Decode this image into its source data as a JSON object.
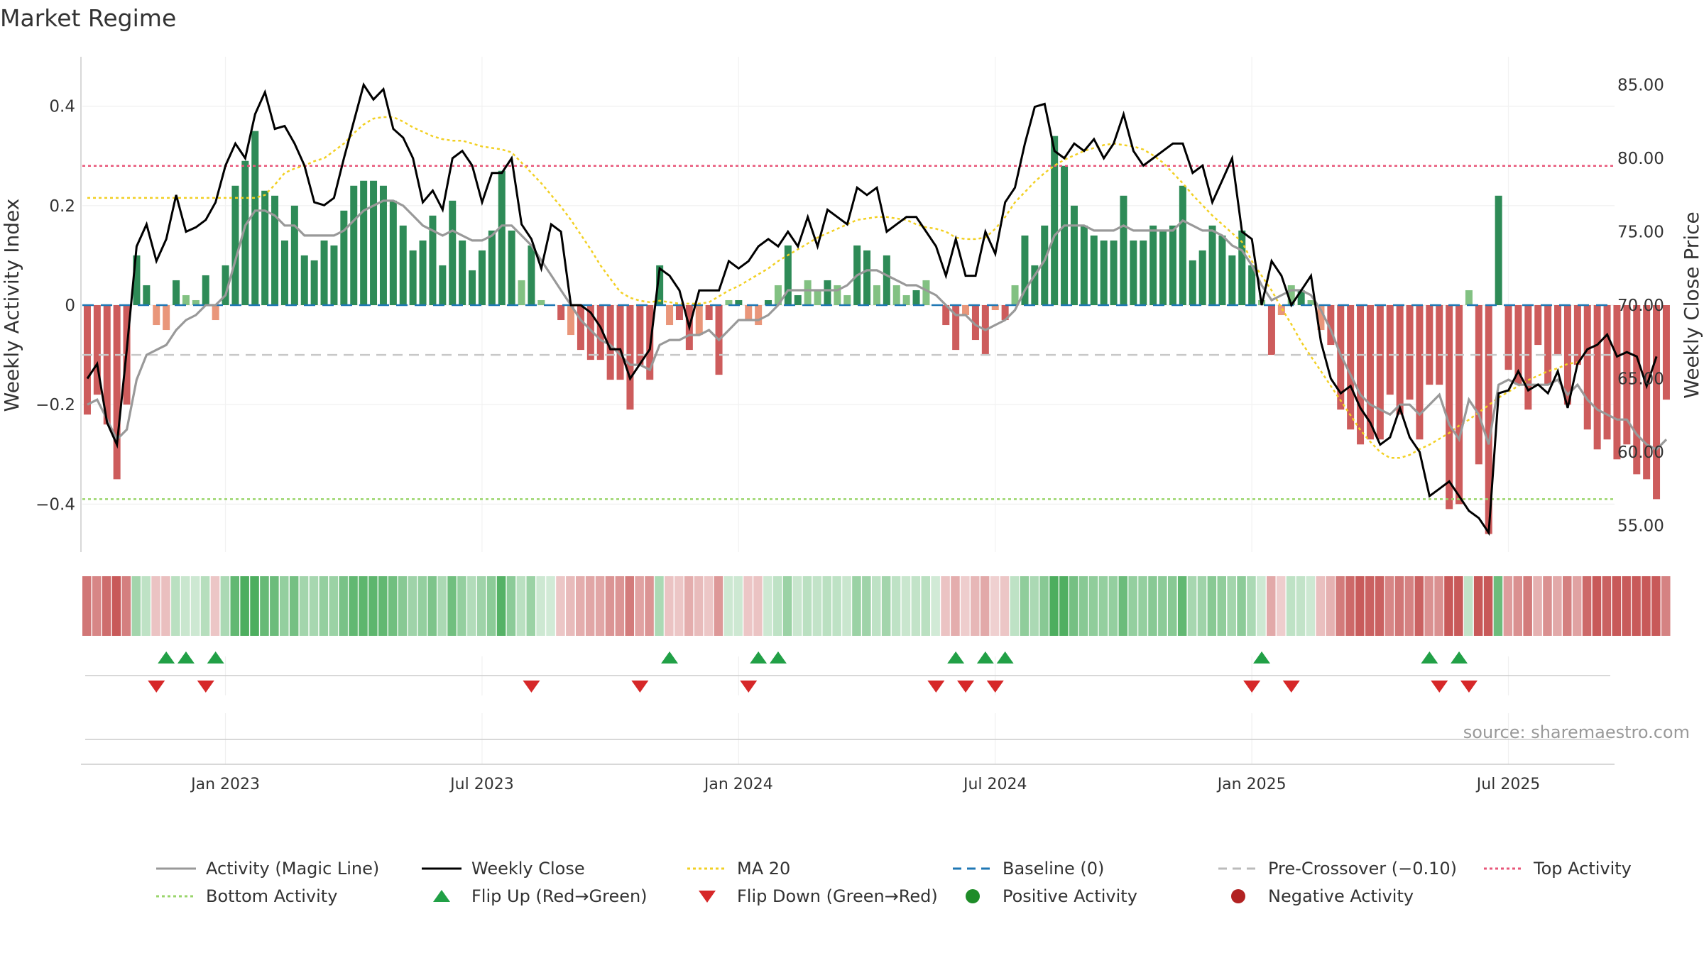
{
  "chart_data": {
    "type": "bar",
    "title": "Market Regime",
    "source": "source: sharemaestro.com",
    "ylabel": "Weekly Activity Index",
    "y2label": "Weekly Close Price",
    "ylim": [
      -0.5,
      0.5
    ],
    "y2lim": [
      52.0,
      86.0
    ],
    "yticks": [
      0.4,
      0.2,
      0,
      -0.2,
      -0.4
    ],
    "ytick_labels": [
      "0.4",
      "0.2",
      "0",
      "−0.2",
      "−0.4"
    ],
    "y2ticks": [
      85.0,
      80.0,
      75.0,
      70.0,
      65.0,
      60.0,
      55.0
    ],
    "y2tick_labels": [
      "85.00",
      "80.00",
      "75.00",
      "70.00",
      "65.00",
      "60.00",
      "55.00"
    ],
    "xticks": [
      "Jan 2023",
      "Jul 2023",
      "Jan 2024",
      "Jul 2024",
      "Jan 2025",
      "Jul 2025"
    ],
    "xtick_weeks": [
      14.5,
      40.5,
      66.5,
      92.5,
      118.5,
      144.5
    ],
    "grid": true,
    "legend_position": "bottom",
    "top_activity": 0.28,
    "bottom_activity": -0.39,
    "pre_crossover": -0.1,
    "baseline": 0,
    "legend": [
      {
        "label": "Activity (Magic Line)",
        "kind": "line",
        "color": "#999999",
        "dash": ""
      },
      {
        "label": "Weekly Close",
        "kind": "line",
        "color": "#000000",
        "dash": ""
      },
      {
        "label": "MA 20",
        "kind": "line",
        "color": "#f2d024",
        "dash": "4,4"
      },
      {
        "label": "Baseline (0)",
        "kind": "line",
        "color": "#1f77b4",
        "dash": "12,8"
      },
      {
        "label": "Pre-Crossover (−0.10)",
        "kind": "line",
        "color": "#bbbbbb",
        "dash": "12,8"
      },
      {
        "label": "Top Activity",
        "kind": "line",
        "color": "#e8577a",
        "dash": "4,4"
      },
      {
        "label": "Bottom Activity",
        "kind": "line",
        "color": "#9ad56b",
        "dash": "4,4"
      },
      {
        "label": "Flip Up (Red→Green)",
        "kind": "triup",
        "color": "#21a046",
        "dash": ""
      },
      {
        "label": "Flip Down (Green→Red)",
        "kind": "tridown",
        "color": "#d62728",
        "dash": ""
      },
      {
        "label": "Positive Activity",
        "kind": "dot",
        "color": "#1e8c28",
        "dash": ""
      },
      {
        "label": "Negative Activity",
        "kind": "dot",
        "color": "#b22222",
        "dash": ""
      }
    ],
    "colors": {
      "pos_dark": "#2e8b57",
      "pos_light": "#82c182",
      "neg_dark": "#cd5c5c",
      "neg_light": "#e9967a",
      "flip_up": "#21a046",
      "flip_down": "#d62728",
      "close": "#000000",
      "magic": "#999999",
      "ma20": "#f2d024"
    },
    "series": [
      {
        "name": "Activity",
        "values": [
          -0.22,
          -0.18,
          -0.24,
          -0.35,
          -0.2,
          0.1,
          0.04,
          -0.04,
          -0.05,
          0.05,
          0.02,
          0.01,
          0.06,
          -0.03,
          0.08,
          0.24,
          0.29,
          0.35,
          0.23,
          0.22,
          0.13,
          0.2,
          0.1,
          0.09,
          0.13,
          0.12,
          0.19,
          0.24,
          0.25,
          0.25,
          0.24,
          0.21,
          0.16,
          0.11,
          0.13,
          0.18,
          0.08,
          0.21,
          0.13,
          0.07,
          0.11,
          0.15,
          0.27,
          0.15,
          0.05,
          0.12,
          0.01,
          0,
          -0.03,
          -0.06,
          -0.09,
          -0.11,
          -0.11,
          -0.15,
          -0.15,
          -0.21,
          -0.12,
          -0.15,
          0.08,
          -0.04,
          -0.03,
          -0.09,
          -0.06,
          -0.03,
          -0.14,
          0.01,
          0.01,
          -0.03,
          -0.04,
          0.01,
          0.04,
          0.12,
          0.02,
          0.05,
          0.03,
          0.05,
          0.04,
          0.02,
          0.12,
          0.11,
          0.04,
          0.1,
          0.04,
          0.02,
          0.03,
          0.05,
          0,
          -0.04,
          -0.09,
          -0.02,
          -0.07,
          -0.1,
          -0.01,
          -0.03,
          0.04,
          0.14,
          0.08,
          0.16,
          0.34,
          0.28,
          0.2,
          0.16,
          0.14,
          0.13,
          0.13,
          0.22,
          0.13,
          0.13,
          0.16,
          0.15,
          0.16,
          0.24,
          0.09,
          0.11,
          0.16,
          0.14,
          0.1,
          0.15,
          0.08,
          0.01,
          -0.1,
          -0.02,
          0.04,
          0.03,
          0.01,
          -0.05,
          -0.08,
          -0.21,
          -0.25,
          -0.28,
          -0.27,
          -0.27,
          -0.18,
          -0.22,
          -0.19,
          -0.27,
          -0.16,
          -0.16,
          -0.41,
          -0.4,
          0.03,
          -0.32,
          -0.46,
          0.22,
          -0.13,
          -0.16,
          -0.21,
          -0.08,
          -0.16,
          -0.1,
          -0.2,
          -0.12,
          -0.25,
          -0.29,
          -0.27,
          -0.31,
          -0.28,
          -0.34,
          -0.35,
          -0.39,
          -0.19
        ]
      },
      {
        "name": "Weekly Close",
        "values": [
          65.0,
          66.0,
          62.0,
          60.5,
          67.0,
          74.0,
          75.5,
          73.0,
          74.5,
          77.5,
          75.0,
          75.3,
          75.8,
          77.0,
          79.5,
          81.0,
          80.0,
          83.0,
          84.5,
          82.0,
          82.2,
          81.0,
          79.5,
          77.0,
          76.8,
          77.3,
          80.0,
          82.5,
          85.0,
          84.0,
          84.7,
          82.0,
          81.4,
          80.0,
          77.0,
          77.8,
          76.5,
          80.0,
          80.5,
          79.5,
          77.0,
          79.0,
          79.0,
          80.0,
          75.5,
          74.5,
          72.5,
          75.5,
          75.0,
          70.0,
          70.0,
          69.5,
          68.5,
          67.0,
          67.0,
          65.0,
          66.0,
          67.0,
          72.5,
          72.0,
          71.0,
          68.5,
          71.0,
          71.0,
          71.0,
          73.0,
          72.5,
          73.0,
          74.0,
          74.5,
          74.0,
          75.0,
          74.0,
          76.0,
          74.0,
          76.5,
          76.0,
          75.5,
          78.0,
          77.5,
          78.0,
          75.0,
          75.5,
          76.0,
          76.0,
          75.0,
          74.0,
          72.0,
          74.5,
          72.0,
          72.0,
          75.0,
          73.5,
          77.0,
          78.0,
          81.0,
          83.5,
          83.7,
          80.5,
          80.0,
          81.0,
          80.5,
          81.3,
          80.0,
          81.0,
          83.0,
          80.5,
          79.5,
          80.0,
          80.5,
          81.0,
          81.0,
          79.0,
          79.5,
          77.0,
          78.5,
          80.0,
          75.0,
          74.5,
          70.0,
          73.0,
          72.0,
          70.0,
          71.0,
          72.0,
          67.5,
          65.0,
          64.0,
          64.5,
          63.0,
          62.0,
          60.5,
          61.0,
          63.0,
          61.0,
          60.0,
          57.0,
          57.5,
          58.0,
          57.0,
          56.0,
          55.5,
          54.5,
          64.0,
          64.2,
          65.5,
          64.2,
          64.6,
          64.0,
          65.5,
          63.0,
          66.0,
          67.0,
          67.3,
          68.0,
          66.5,
          66.8,
          66.5,
          64.5,
          66.5
        ]
      },
      {
        "name": "Activity (Magic Line)",
        "values": [
          -0.2,
          -0.19,
          -0.23,
          -0.27,
          -0.25,
          -0.15,
          -0.1,
          -0.09,
          -0.08,
          -0.05,
          -0.03,
          -0.02,
          0.0,
          0.0,
          0.02,
          0.09,
          0.16,
          0.19,
          0.19,
          0.18,
          0.16,
          0.16,
          0.14,
          0.14,
          0.14,
          0.14,
          0.15,
          0.17,
          0.19,
          0.2,
          0.21,
          0.21,
          0.2,
          0.18,
          0.16,
          0.15,
          0.14,
          0.15,
          0.14,
          0.13,
          0.13,
          0.14,
          0.16,
          0.16,
          0.14,
          0.12,
          0.09,
          0.06,
          0.03,
          0.0,
          -0.03,
          -0.05,
          -0.07,
          -0.08,
          -0.1,
          -0.12,
          -0.12,
          -0.13,
          -0.08,
          -0.07,
          -0.07,
          -0.06,
          -0.06,
          -0.05,
          -0.07,
          -0.05,
          -0.03,
          -0.03,
          -0.03,
          -0.02,
          0.0,
          0.03,
          0.03,
          0.03,
          0.03,
          0.03,
          0.03,
          0.04,
          0.06,
          0.07,
          0.07,
          0.06,
          0.05,
          0.04,
          0.04,
          0.03,
          0.02,
          0.0,
          -0.02,
          -0.02,
          -0.04,
          -0.05,
          -0.04,
          -0.03,
          -0.01,
          0.03,
          0.06,
          0.09,
          0.14,
          0.16,
          0.16,
          0.16,
          0.15,
          0.15,
          0.15,
          0.16,
          0.15,
          0.15,
          0.15,
          0.15,
          0.15,
          0.17,
          0.16,
          0.15,
          0.15,
          0.14,
          0.12,
          0.11,
          0.08,
          0.04,
          0.01,
          0.02,
          0.03,
          0.03,
          0.02,
          -0.01,
          -0.05,
          -0.1,
          -0.14,
          -0.18,
          -0.2,
          -0.21,
          -0.22,
          -0.2,
          -0.2,
          -0.22,
          -0.2,
          -0.18,
          -0.24,
          -0.27,
          -0.19,
          -0.22,
          -0.28,
          -0.16,
          -0.15,
          -0.16,
          -0.16,
          -0.16,
          -0.16,
          -0.15,
          -0.18,
          -0.16,
          -0.19,
          -0.21,
          -0.22,
          -0.23,
          -0.23,
          -0.26,
          -0.28,
          -0.29,
          -0.27
        ]
      },
      {
        "name": "MA 20",
        "values": [
          77.3,
          77.3,
          77.3,
          77.3,
          77.3,
          77.3,
          77.3,
          77.3,
          77.3,
          77.3,
          77.3,
          77.3,
          77.3,
          77.3,
          77.3,
          77.3,
          77.3,
          77.3,
          77.5,
          78.2,
          79.0,
          79.3,
          79.5,
          79.8,
          80.0,
          80.5,
          81.0,
          81.7,
          82.3,
          82.7,
          82.8,
          82.8,
          82.5,
          82.1,
          81.8,
          81.5,
          81.3,
          81.2,
          81.2,
          81.0,
          80.8,
          80.7,
          80.6,
          80.4,
          79.7,
          79.0,
          78.3,
          77.5,
          76.7,
          75.8,
          74.8,
          73.8,
          72.7,
          71.8,
          70.9,
          70.5,
          70.3,
          70.2,
          70.3,
          70.2,
          70.1,
          70.1,
          70.1,
          70.2,
          70.6,
          71.0,
          71.3,
          71.7,
          72.1,
          72.5,
          73.0,
          73.4,
          73.8,
          74.2,
          74.6,
          74.9,
          75.2,
          75.5,
          75.8,
          75.9,
          76.0,
          76.0,
          75.9,
          75.8,
          75.5,
          75.3,
          75.2,
          75.0,
          74.6,
          74.5,
          74.5,
          74.6,
          75.2,
          76.0,
          77.0,
          77.7,
          78.4,
          79.0,
          79.5,
          79.9,
          80.2,
          80.5,
          80.7,
          80.9,
          81.0,
          80.9,
          80.8,
          80.6,
          80.2,
          79.7,
          79.0,
          78.3,
          77.5,
          76.8,
          76.1,
          75.5,
          74.9,
          74.3,
          73.0,
          72.0,
          71.0,
          69.8,
          68.7,
          67.5,
          66.5,
          65.5,
          64.5,
          63.5,
          62.5,
          61.5,
          60.7,
          60.0,
          59.6,
          59.6,
          59.8,
          60.2,
          60.5,
          60.9,
          61.3,
          61.8,
          62.2,
          62.7,
          63.2,
          63.7,
          64.1,
          64.5,
          64.9,
          65.2,
          65.5,
          65.7,
          66.0,
          66.1
        ]
      }
    ],
    "flip_up_weeks": [
      8,
      10,
      13,
      59,
      68,
      70,
      88,
      91,
      93,
      119,
      136,
      139
    ],
    "flip_down_weeks": [
      7,
      12,
      45,
      56,
      67,
      86,
      89,
      92,
      118,
      122,
      137,
      140
    ]
  }
}
